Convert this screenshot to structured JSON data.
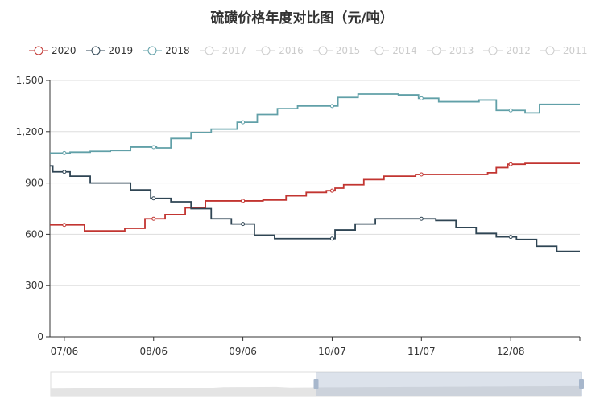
{
  "chart_data": {
    "type": "line",
    "title": "硫磺价格年度对比图（元/吨）",
    "x_ticks": [
      "07/06",
      "08/06",
      "09/06",
      "10/07",
      "11/07",
      "12/08"
    ],
    "xlim": [
      "07/01",
      "12/31"
    ],
    "ylim": [
      0,
      1500
    ],
    "y_ticks": [
      "0",
      "300",
      "600",
      "900",
      "1,200",
      "1,500"
    ],
    "grid": true,
    "legend_position": "top",
    "step": true,
    "series": [
      {
        "name": "2020",
        "color": "#c23531",
        "active": true,
        "points": [
          [
            "07/01",
            655
          ],
          [
            "07/13",
            620
          ],
          [
            "07/27",
            635
          ],
          [
            "08/03",
            690
          ],
          [
            "08/10",
            715
          ],
          [
            "08/17",
            755
          ],
          [
            "08/24",
            795
          ],
          [
            "09/13",
            800
          ],
          [
            "09/21",
            825
          ],
          [
            "09/28",
            845
          ],
          [
            "10/05",
            855
          ],
          [
            "10/08",
            870
          ],
          [
            "10/11",
            890
          ],
          [
            "10/18",
            920
          ],
          [
            "10/25",
            940
          ],
          [
            "11/05",
            950
          ],
          [
            "11/30",
            960
          ],
          [
            "12/03",
            990
          ],
          [
            "12/07",
            1010
          ],
          [
            "12/13",
            1015
          ],
          [
            "12/31",
            1015
          ]
        ]
      },
      {
        "name": "2019",
        "color": "#2f4554",
        "active": true,
        "points": [
          [
            "07/01",
            1000
          ],
          [
            "07/02",
            965
          ],
          [
            "07/08",
            940
          ],
          [
            "07/15",
            900
          ],
          [
            "07/29",
            860
          ],
          [
            "08/05",
            810
          ],
          [
            "08/12",
            790
          ],
          [
            "08/19",
            750
          ],
          [
            "08/26",
            690
          ],
          [
            "09/02",
            660
          ],
          [
            "09/10",
            595
          ],
          [
            "09/17",
            575
          ],
          [
            "10/08",
            625
          ],
          [
            "10/15",
            660
          ],
          [
            "10/22",
            690
          ],
          [
            "11/12",
            680
          ],
          [
            "11/19",
            640
          ],
          [
            "11/26",
            605
          ],
          [
            "12/03",
            585
          ],
          [
            "12/10",
            570
          ],
          [
            "12/17",
            530
          ],
          [
            "12/24",
            500
          ],
          [
            "12/31",
            500
          ]
        ]
      },
      {
        "name": "2018",
        "color": "#61a0a8",
        "active": true,
        "points": [
          [
            "07/01",
            1075
          ],
          [
            "07/08",
            1080
          ],
          [
            "07/15",
            1085
          ],
          [
            "07/22",
            1090
          ],
          [
            "07/29",
            1110
          ],
          [
            "08/07",
            1105
          ],
          [
            "08/12",
            1160
          ],
          [
            "08/19",
            1195
          ],
          [
            "08/26",
            1215
          ],
          [
            "09/04",
            1255
          ],
          [
            "09/11",
            1300
          ],
          [
            "09/18",
            1335
          ],
          [
            "09/25",
            1350
          ],
          [
            "10/09",
            1400
          ],
          [
            "10/16",
            1420
          ],
          [
            "10/30",
            1415
          ],
          [
            "11/06",
            1395
          ],
          [
            "11/13",
            1375
          ],
          [
            "11/27",
            1385
          ],
          [
            "12/03",
            1325
          ],
          [
            "12/13",
            1310
          ],
          [
            "12/18",
            1360
          ],
          [
            "12/31",
            1360
          ]
        ]
      },
      {
        "name": "2017",
        "active": false
      },
      {
        "name": "2016",
        "active": false
      },
      {
        "name": "2015",
        "active": false
      },
      {
        "name": "2014",
        "active": false
      },
      {
        "name": "2013",
        "active": false
      },
      {
        "name": "2012",
        "active": false
      },
      {
        "name": "2011",
        "active": false
      }
    ],
    "data_zoom": {
      "start_fraction": 0.5,
      "end_fraction": 1.0
    }
  }
}
